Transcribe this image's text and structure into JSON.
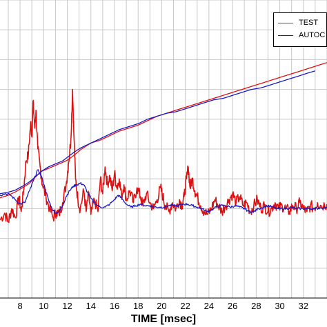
{
  "chart_data": {
    "type": "line",
    "title": "",
    "xlabel": "TIME [msec]",
    "ylabel": "",
    "xlim": [
      6.3,
      34
    ],
    "ylim": [
      0,
      1
    ],
    "xticks": [
      8,
      10,
      12,
      14,
      16,
      18,
      20,
      22,
      24,
      26,
      28,
      30,
      32
    ],
    "grid": true,
    "legend_position": "top-right",
    "series": [
      {
        "name": "TEST",
        "color": "#e01010",
        "points": [
          [
            6.3,
            0.262
          ],
          [
            6.7,
            0.285
          ],
          [
            7.0,
            0.255
          ],
          [
            7.3,
            0.3
          ],
          [
            7.6,
            0.27
          ],
          [
            7.9,
            0.34
          ],
          [
            8.1,
            0.29
          ],
          [
            8.3,
            0.36
          ],
          [
            8.5,
            0.46
          ],
          [
            8.7,
            0.48
          ],
          [
            8.9,
            0.59
          ],
          [
            9.0,
            0.54
          ],
          [
            9.1,
            0.66
          ],
          [
            9.25,
            0.57
          ],
          [
            9.35,
            0.63
          ],
          [
            9.5,
            0.5
          ],
          [
            9.7,
            0.44
          ],
          [
            9.9,
            0.38
          ],
          [
            10.2,
            0.34
          ],
          [
            10.5,
            0.3
          ],
          [
            10.8,
            0.27
          ],
          [
            11.1,
            0.29
          ],
          [
            11.3,
            0.28
          ],
          [
            11.6,
            0.32
          ],
          [
            11.9,
            0.38
          ],
          [
            12.1,
            0.45
          ],
          [
            12.3,
            0.53
          ],
          [
            12.45,
            0.7
          ],
          [
            12.55,
            0.56
          ],
          [
            12.7,
            0.4
          ],
          [
            12.9,
            0.33
          ],
          [
            13.1,
            0.3
          ],
          [
            13.4,
            0.36
          ],
          [
            13.6,
            0.29
          ],
          [
            13.8,
            0.35
          ],
          [
            14.0,
            0.28
          ],
          [
            14.3,
            0.33
          ],
          [
            14.6,
            0.29
          ],
          [
            14.8,
            0.4
          ],
          [
            15.0,
            0.35
          ],
          [
            15.2,
            0.44
          ],
          [
            15.4,
            0.38
          ],
          [
            15.6,
            0.41
          ],
          [
            15.8,
            0.36
          ],
          [
            16.0,
            0.42
          ],
          [
            16.2,
            0.37
          ],
          [
            16.4,
            0.4
          ],
          [
            16.6,
            0.34
          ],
          [
            16.8,
            0.38
          ],
          [
            17.0,
            0.33
          ],
          [
            17.3,
            0.36
          ],
          [
            17.6,
            0.32
          ],
          [
            17.9,
            0.37
          ],
          [
            18.2,
            0.34
          ],
          [
            18.4,
            0.31
          ],
          [
            18.7,
            0.35
          ],
          [
            19.0,
            0.32
          ],
          [
            19.3,
            0.3
          ],
          [
            19.6,
            0.33
          ],
          [
            19.9,
            0.37
          ],
          [
            20.1,
            0.34
          ],
          [
            20.3,
            0.31
          ],
          [
            20.6,
            0.29
          ],
          [
            20.9,
            0.32
          ],
          [
            21.2,
            0.3
          ],
          [
            21.5,
            0.33
          ],
          [
            21.7,
            0.31
          ],
          [
            21.9,
            0.34
          ],
          [
            22.1,
            0.4
          ],
          [
            22.25,
            0.44
          ],
          [
            22.4,
            0.37
          ],
          [
            22.6,
            0.4
          ],
          [
            22.8,
            0.36
          ],
          [
            23.0,
            0.34
          ],
          [
            23.3,
            0.31
          ],
          [
            23.6,
            0.29
          ],
          [
            23.9,
            0.28
          ],
          [
            24.2,
            0.3
          ],
          [
            24.5,
            0.33
          ],
          [
            24.8,
            0.31
          ],
          [
            25.1,
            0.29
          ],
          [
            25.4,
            0.31
          ],
          [
            25.7,
            0.33
          ],
          [
            26.0,
            0.35
          ],
          [
            26.3,
            0.32
          ],
          [
            26.6,
            0.34
          ],
          [
            26.9,
            0.31
          ],
          [
            27.2,
            0.32
          ],
          [
            27.5,
            0.29
          ],
          [
            27.8,
            0.31
          ],
          [
            28.1,
            0.33
          ],
          [
            28.4,
            0.3
          ],
          [
            28.7,
            0.31
          ],
          [
            29.0,
            0.29
          ],
          [
            29.3,
            0.3
          ],
          [
            29.6,
            0.32
          ],
          [
            29.9,
            0.3
          ],
          [
            30.2,
            0.31
          ],
          [
            30.5,
            0.3
          ],
          [
            30.8,
            0.29
          ],
          [
            31.1,
            0.31
          ],
          [
            31.4,
            0.3
          ],
          [
            31.7,
            0.32
          ],
          [
            32.0,
            0.3
          ],
          [
            32.3,
            0.29
          ],
          [
            32.6,
            0.31
          ],
          [
            32.9,
            0.3
          ],
          [
            33.2,
            0.32
          ],
          [
            33.5,
            0.31
          ],
          [
            34.0,
            0.315
          ]
        ],
        "noise": 0.02
      },
      {
        "name": "AUTOC",
        "color": "#1a1ac8",
        "points": [
          [
            6.3,
            0.345
          ],
          [
            6.8,
            0.35
          ],
          [
            7.2,
            0.345
          ],
          [
            7.6,
            0.33
          ],
          [
            8.0,
            0.315
          ],
          [
            8.4,
            0.32
          ],
          [
            8.8,
            0.36
          ],
          [
            9.2,
            0.4
          ],
          [
            9.5,
            0.43
          ],
          [
            9.8,
            0.41
          ],
          [
            10.1,
            0.37
          ],
          [
            10.4,
            0.33
          ],
          [
            10.7,
            0.3
          ],
          [
            11.0,
            0.285
          ],
          [
            11.3,
            0.29
          ],
          [
            11.6,
            0.31
          ],
          [
            11.9,
            0.34
          ],
          [
            12.2,
            0.36
          ],
          [
            12.5,
            0.375
          ],
          [
            12.8,
            0.38
          ],
          [
            13.1,
            0.385
          ],
          [
            13.4,
            0.38
          ],
          [
            13.7,
            0.355
          ],
          [
            14.0,
            0.335
          ],
          [
            14.4,
            0.315
          ],
          [
            14.8,
            0.305
          ],
          [
            15.2,
            0.305
          ],
          [
            15.6,
            0.315
          ],
          [
            16.0,
            0.33
          ],
          [
            16.3,
            0.345
          ],
          [
            16.6,
            0.335
          ],
          [
            17.0,
            0.315
          ],
          [
            17.4,
            0.305
          ],
          [
            17.8,
            0.31
          ],
          [
            18.2,
            0.315
          ],
          [
            18.6,
            0.31
          ],
          [
            19.0,
            0.31
          ],
          [
            19.4,
            0.305
          ],
          [
            19.8,
            0.305
          ],
          [
            20.2,
            0.305
          ],
          [
            20.6,
            0.31
          ],
          [
            21.0,
            0.31
          ],
          [
            21.4,
            0.31
          ],
          [
            21.8,
            0.315
          ],
          [
            22.2,
            0.315
          ],
          [
            22.6,
            0.31
          ],
          [
            23.0,
            0.305
          ],
          [
            23.4,
            0.3
          ],
          [
            23.8,
            0.29
          ],
          [
            24.2,
            0.295
          ],
          [
            24.6,
            0.305
          ],
          [
            25.0,
            0.31
          ],
          [
            25.4,
            0.31
          ],
          [
            25.8,
            0.305
          ],
          [
            26.2,
            0.31
          ],
          [
            26.6,
            0.305
          ],
          [
            27.0,
            0.3
          ],
          [
            27.4,
            0.29
          ],
          [
            27.8,
            0.29
          ],
          [
            28.2,
            0.3
          ],
          [
            28.6,
            0.305
          ],
          [
            29.0,
            0.31
          ],
          [
            29.4,
            0.305
          ],
          [
            29.8,
            0.3
          ],
          [
            30.2,
            0.3
          ],
          [
            30.6,
            0.3
          ],
          [
            31.0,
            0.305
          ],
          [
            31.4,
            0.3
          ],
          [
            31.8,
            0.3
          ],
          [
            32.2,
            0.3
          ],
          [
            32.6,
            0.3
          ],
          [
            33.0,
            0.3
          ],
          [
            33.4,
            0.302
          ],
          [
            34.0,
            0.305
          ]
        ],
        "noise": 0.004
      },
      {
        "name": "",
        "color": "#e01010",
        "points": [
          [
            6.3,
            0.336
          ],
          [
            7.0,
            0.345
          ],
          [
            7.6,
            0.356
          ],
          [
            8.2,
            0.37
          ],
          [
            8.8,
            0.385
          ],
          [
            9.4,
            0.41
          ],
          [
            9.8,
            0.425
          ],
          [
            10.4,
            0.435
          ],
          [
            11.0,
            0.445
          ],
          [
            11.6,
            0.455
          ],
          [
            12.0,
            0.462
          ],
          [
            12.6,
            0.48
          ],
          [
            13.2,
            0.5
          ],
          [
            14.0,
            0.52
          ],
          [
            14.8,
            0.53
          ],
          [
            15.6,
            0.545
          ],
          [
            16.4,
            0.56
          ],
          [
            17.2,
            0.57
          ],
          [
            18.0,
            0.58
          ],
          [
            18.8,
            0.595
          ],
          [
            19.6,
            0.61
          ],
          [
            20.4,
            0.62
          ],
          [
            21.2,
            0.63
          ],
          [
            22.0,
            0.64
          ],
          [
            22.8,
            0.65
          ],
          [
            23.6,
            0.66
          ],
          [
            24.4,
            0.67
          ],
          [
            25.2,
            0.68
          ],
          [
            26.0,
            0.69
          ],
          [
            26.8,
            0.7
          ],
          [
            27.6,
            0.71
          ],
          [
            28.4,
            0.72
          ],
          [
            29.2,
            0.73
          ],
          [
            30.0,
            0.74
          ],
          [
            30.8,
            0.75
          ],
          [
            31.6,
            0.76
          ],
          [
            32.4,
            0.77
          ],
          [
            33.2,
            0.78
          ],
          [
            34.0,
            0.79
          ]
        ],
        "noise": 0
      },
      {
        "name": "",
        "color": "#1a1ac8",
        "points": [
          [
            6.3,
            0.35
          ],
          [
            7.0,
            0.355
          ],
          [
            7.6,
            0.362
          ],
          [
            8.2,
            0.375
          ],
          [
            8.8,
            0.39
          ],
          [
            9.4,
            0.41
          ],
          [
            9.8,
            0.425
          ],
          [
            10.4,
            0.44
          ],
          [
            11.0,
            0.45
          ],
          [
            11.6,
            0.46
          ],
          [
            12.0,
            0.472
          ],
          [
            12.6,
            0.49
          ],
          [
            13.2,
            0.505
          ],
          [
            14.0,
            0.52
          ],
          [
            14.8,
            0.535
          ],
          [
            15.6,
            0.55
          ],
          [
            16.4,
            0.565
          ],
          [
            17.2,
            0.575
          ],
          [
            18.0,
            0.585
          ],
          [
            18.8,
            0.6
          ],
          [
            19.6,
            0.61
          ],
          [
            20.4,
            0.62
          ],
          [
            21.2,
            0.625
          ],
          [
            22.0,
            0.635
          ],
          [
            22.8,
            0.645
          ],
          [
            23.6,
            0.655
          ],
          [
            24.4,
            0.665
          ],
          [
            25.2,
            0.67
          ],
          [
            26.0,
            0.68
          ],
          [
            26.8,
            0.69
          ],
          [
            27.6,
            0.7
          ],
          [
            28.4,
            0.705
          ],
          [
            29.2,
            0.715
          ],
          [
            30.0,
            0.725
          ],
          [
            30.8,
            0.735
          ],
          [
            31.6,
            0.745
          ],
          [
            32.4,
            0.755
          ],
          [
            33.0,
            0.762
          ]
        ],
        "noise": 0
      }
    ]
  }
}
